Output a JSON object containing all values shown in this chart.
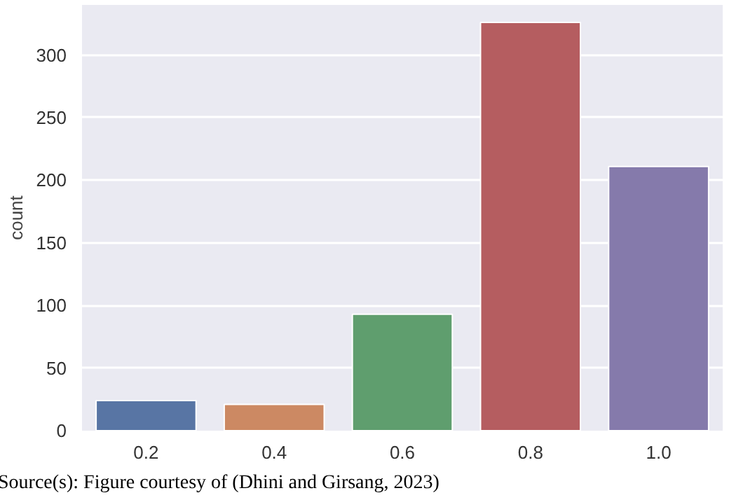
{
  "chart_data": {
    "type": "bar",
    "ylabel": "count",
    "categories": [
      "0.2",
      "0.4",
      "0.6",
      "0.8",
      "1.0"
    ],
    "values": [
      24,
      21,
      93,
      326,
      211
    ],
    "colors": [
      "#5875a4",
      "#cc8963",
      "#5f9e6e",
      "#b55d60",
      "#857aab"
    ],
    "ylim": [
      0,
      340
    ],
    "yticks": [
      0,
      50,
      100,
      150,
      200,
      250,
      300
    ],
    "grid": "y",
    "annotations": [
      "Source(s): Figure courtesy of (Dhini and Girsang, 2023)"
    ]
  }
}
